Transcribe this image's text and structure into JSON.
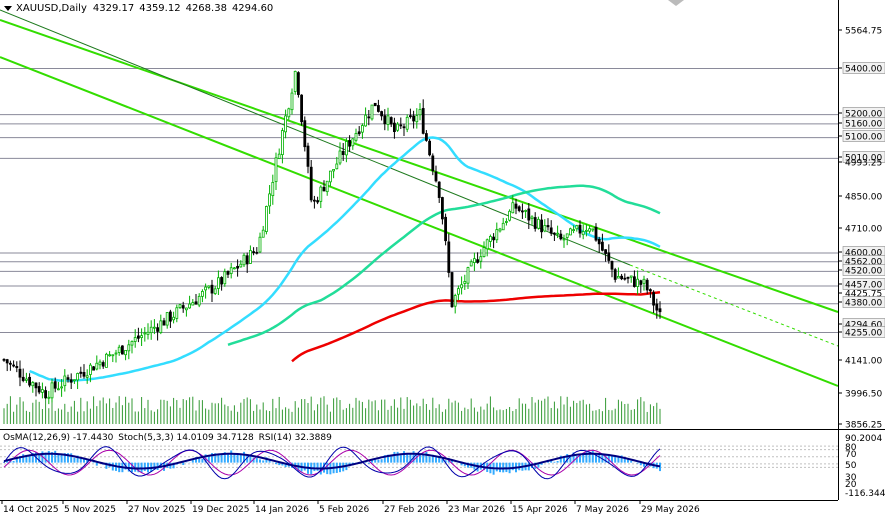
{
  "header": {
    "symbol": "XAUUSD,Daily",
    "open": "4329.17",
    "high": "4359.12",
    "low": "4268.38",
    "close": "4294.60"
  },
  "indicator_labels": {
    "macd": "OsMA(12,26,9) -17.4430",
    "stoch": "Stoch(5,3,3) 14.0109 34.7128",
    "rsi": "RSI(14) 32.3889"
  },
  "colors": {
    "bull": "#00b000",
    "bear": "#000000",
    "channel": "#33dd00",
    "ma_fast": "#33ddff",
    "ma_mid": "#22dd99",
    "ma_slow": "#ee0000",
    "hline": "#8a8a9a",
    "volume": "#339933",
    "osma": "#33aaff",
    "stoch_main": "#0000aa",
    "stoch_signal": "#aa00aa",
    "rsi": "#000080"
  },
  "chart_data": {
    "type": "candlestick",
    "symbol": "XAUUSD",
    "timeframe": "Daily",
    "x_tick_labels": [
      "14 Oct 2025",
      "5 Nov 2025",
      "27 Nov 2025",
      "19 Dec 2025",
      "14 Jan 2026",
      "5 Feb 2026",
      "27 Feb 2026",
      "23 Mar 2026",
      "15 Apr 2026",
      "7 May 2026",
      "29 May 2026"
    ],
    "y_tick_labels": [
      "5564.75",
      "5400.00",
      "5200.00",
      "5160.00",
      "5100.00",
      "5010.00",
      "4993.25",
      "4850.00",
      "4710.00",
      "4600.00",
      "4562.00",
      "4520.00",
      "4457.00",
      "4425.75",
      "4380.00",
      "4294.60",
      "4255.00",
      "4141.00",
      "3996.50",
      "3856.25"
    ],
    "ylim": [
      3856.25,
      5650
    ],
    "price_levels": [
      5400,
      5200,
      5160,
      5100,
      5010,
      4600,
      4562,
      4520,
      4457,
      4380,
      4255
    ],
    "current_price": 4294.6,
    "close_path": [
      {
        "date": "14 Oct 2025",
        "close": 4150
      },
      {
        "date": "5 Nov 2025",
        "close": 3990
      },
      {
        "date": "27 Nov 2025",
        "close": 4140
      },
      {
        "date": "19 Dec 2025",
        "close": 4310
      },
      {
        "date": "14 Jan 2026",
        "close": 4620
      },
      {
        "date": "26 Jan 2026",
        "close": 5400
      },
      {
        "date": "5 Feb 2026",
        "close": 4950
      },
      {
        "date": "27 Feb 2026",
        "close": 5250
      },
      {
        "date": "3 Mar 2026",
        "close": 5100
      },
      {
        "date": "23 Mar 2026",
        "close": 4380
      },
      {
        "date": "15 Apr 2026",
        "close": 4780
      },
      {
        "date": "7 May 2026",
        "close": 4700
      },
      {
        "date": "29 May 2026",
        "close": 4330
      },
      {
        "date": "3 Jun 2026",
        "close": 4294.6
      }
    ],
    "oscillator_scale": {
      "top": "90.2004",
      "levels": [
        "80",
        "70",
        "50",
        "30",
        "20"
      ],
      "bottom": "-116.3446"
    }
  }
}
